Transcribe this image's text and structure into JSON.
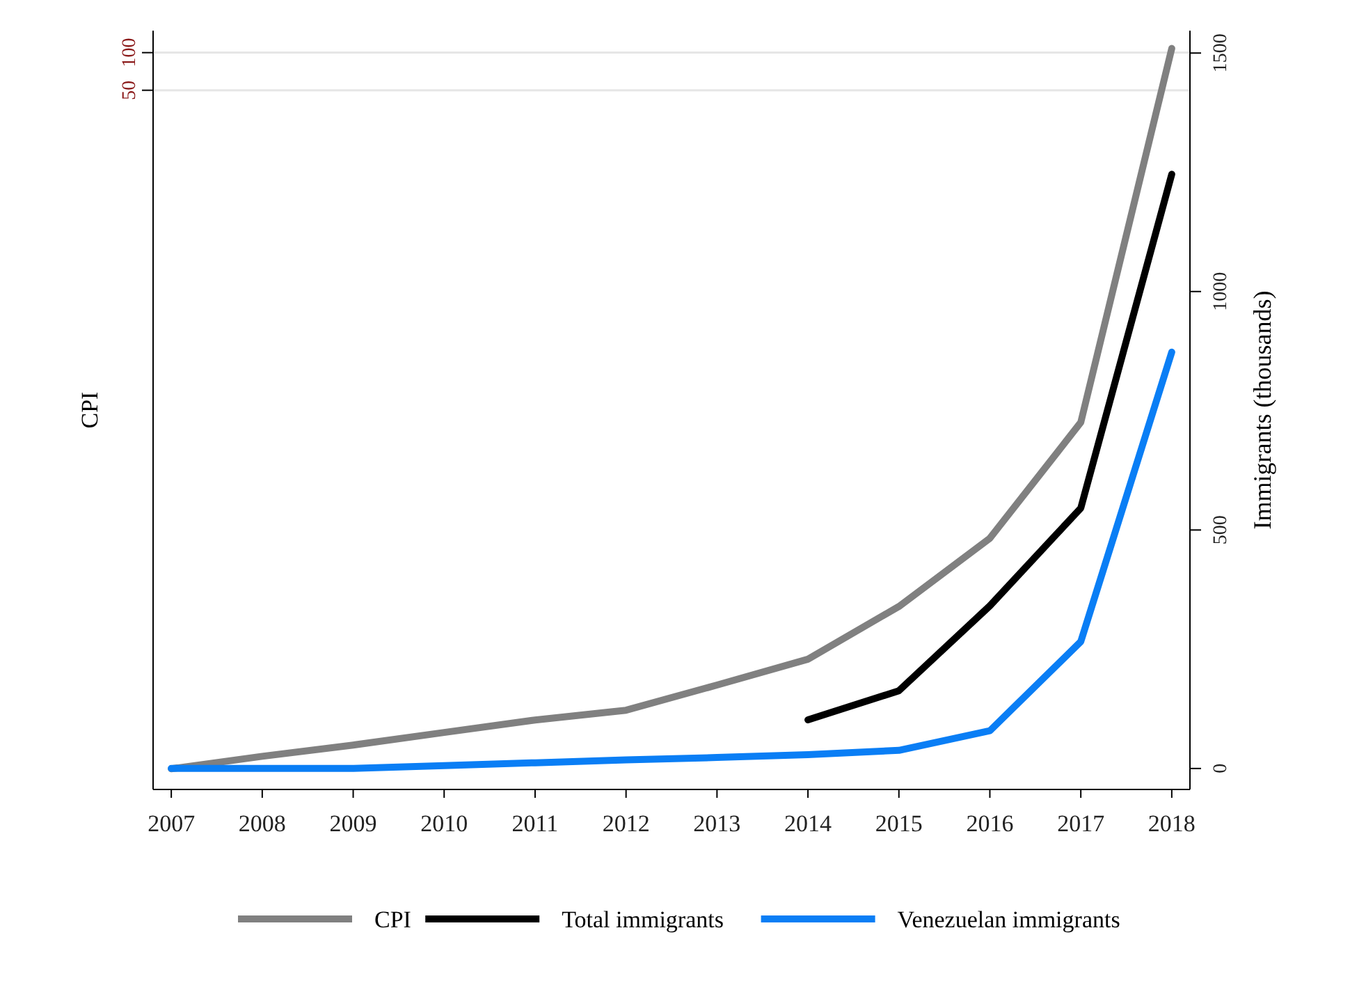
{
  "chart_data": {
    "type": "line",
    "ylabel": "CPI",
    "y2label": "Immigrants (thousands)",
    "x": [
      2007,
      2008,
      2009,
      2010,
      2011,
      2012,
      2013,
      2014,
      2015,
      2016,
      2017,
      2018
    ],
    "xlim": [
      2006.8,
      2018.2
    ],
    "xticks": [
      2007,
      2008,
      2009,
      2010,
      2011,
      2012,
      2013,
      2014,
      2015,
      2016,
      2017,
      2018
    ],
    "ylim": [
      0.000127,
      150
    ],
    "yticks": [
      50,
      100
    ],
    "log": "y",
    "y2lim": [
      -44,
      1547
    ],
    "y2ticks": [
      0,
      500,
      1000,
      1500
    ],
    "grid": "y",
    "legend": "bottom",
    "line_style": "solid",
    "marker": "none",
    "series": [
      {
        "name": "CPI",
        "color": "#808080",
        "values": [
          0.000186,
          0.000234,
          0.000288,
          0.000363,
          0.000457,
          0.000547,
          0.00087,
          0.0014,
          0.0037,
          0.013,
          0.11,
          108
        ]
      },
      {
        "name": "Total immigrants",
        "color": "#000000",
        "axis": "y2",
        "values": [
          null,
          null,
          null,
          null,
          null,
          null,
          null,
          102,
          163,
          341,
          546,
          1246
        ]
      },
      {
        "name": "Venezuelan immigrants",
        "color": "#0a7ef5",
        "axis": "y2",
        "values": [
          0,
          0,
          0,
          6,
          12,
          18,
          23,
          29,
          38,
          79,
          266,
          873
        ]
      }
    ]
  }
}
